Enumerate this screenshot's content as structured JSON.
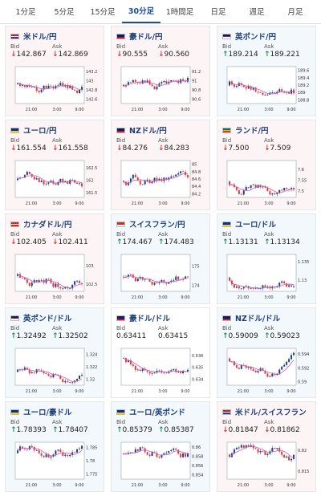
{
  "tabs": [
    "1分足",
    "5分足",
    "15分足",
    "30分足",
    "1時間足",
    "日足",
    "週足",
    "月足"
  ],
  "active_tab": "30分足",
  "labels": {
    "bid": "Bid",
    "ask": "Ask"
  },
  "colors": {
    "up_arrow": "#1f8f5a",
    "down_arrow": "#d23b3b",
    "candle_up": "#1c3f8a",
    "candle_down": "#e03a3a",
    "ma_line": "#c65ec6",
    "title": "#1b3e7a"
  },
  "x_ticks": [
    "21:00",
    "3:00",
    "9:00"
  ],
  "pairs": [
    {
      "name": "米ドル/円",
      "flag": "us",
      "dir": "down",
      "bid": "142.867",
      "ask": "142.869",
      "y_ticks": [
        "143.2",
        "143",
        "142.8",
        "142.6"
      ],
      "ylim": [
        142.5,
        143.3
      ]
    },
    {
      "name": "豪ドル/円",
      "flag": "au",
      "dir": "down",
      "bid": "90.555",
      "ask": "90.560",
      "y_ticks": [
        "91.2",
        "91",
        "90.8",
        "90.6"
      ],
      "ylim": [
        90.5,
        91.3
      ]
    },
    {
      "name": "英ポンド/円",
      "flag": "gb",
      "dir": "up",
      "bid": "189.214",
      "ask": "189.221",
      "y_ticks": [
        "189.6",
        "189.4",
        "189.2",
        "189",
        "188.8"
      ],
      "ylim": [
        188.7,
        189.7
      ]
    },
    {
      "name": "ユーロ/円",
      "flag": "eu",
      "dir": "down",
      "bid": "161.554",
      "ask": "161.558",
      "y_ticks": [
        "162.5",
        "162",
        "161.5"
      ],
      "ylim": [
        161.3,
        162.8
      ]
    },
    {
      "name": "NZドル/円",
      "flag": "nz",
      "dir": "down",
      "bid": "84.276",
      "ask": "84.283",
      "y_ticks": [
        "85",
        "84.8",
        "84.6",
        "84.4",
        "84.2"
      ],
      "ylim": [
        84.1,
        85.1
      ]
    },
    {
      "name": "ランド/円",
      "flag": "za",
      "dir": "down",
      "bid": "7.500",
      "ask": "7.509",
      "y_ticks": [
        "7.6",
        "7.55",
        "7.5"
      ],
      "ylim": [
        7.47,
        7.64
      ]
    },
    {
      "name": "カナダドル/円",
      "flag": "ca",
      "dir": "down",
      "bid": "102.405",
      "ask": "102.411",
      "y_ticks": [
        "103",
        "102.5"
      ],
      "ylim": [
        102.3,
        103.3
      ]
    },
    {
      "name": "スイスフラン/円",
      "flag": "ch",
      "dir": "up",
      "bid": "174.467",
      "ask": "174.483",
      "y_ticks": [
        "175",
        "174"
      ],
      "ylim": [
        173.7,
        175.6
      ]
    },
    {
      "name": "ユーロ/ドル",
      "flag": "eu",
      "dir": "up",
      "bid": "1.13131",
      "ask": "1.13134",
      "y_ticks": [
        "1.135",
        "1.13"
      ],
      "ylim": [
        1.127,
        1.137
      ]
    },
    {
      "name": "英ポンド/ドル",
      "flag": "gb",
      "dir": "up",
      "bid": "1.32492",
      "ask": "1.32502",
      "y_ticks": [
        "1.324",
        "1.322",
        "1.32"
      ],
      "ylim": [
        1.319,
        1.325
      ]
    },
    {
      "name": "豪ドル/ドル",
      "flag": "au",
      "dir": "none",
      "bid": "0.63411",
      "ask": "0.63415",
      "y_ticks": [
        "0.636",
        "0.635",
        "0.634"
      ],
      "ylim": [
        0.6335,
        0.6366
      ]
    },
    {
      "name": "NZドル/ドル",
      "flag": "nz",
      "dir": "up",
      "bid": "0.59009",
      "ask": "0.59023",
      "y_ticks": [
        "0.594",
        "0.592",
        "0.59"
      ],
      "ylim": [
        0.5895,
        0.5948
      ]
    },
    {
      "name": "ユーロ/豪ドル",
      "flag": "eu",
      "dir": "up",
      "bid": "1.78393",
      "ask": "1.78407",
      "y_ticks": [
        "1.785",
        "1.78",
        "1.775"
      ],
      "ylim": [
        1.773,
        1.787
      ]
    },
    {
      "name": "ユーロ/英ポンド",
      "flag": "eu",
      "dir": "up",
      "bid": "0.85379",
      "ask": "0.85387",
      "y_ticks": [
        "0.86",
        "0.858",
        "0.856",
        "0.854"
      ],
      "ylim": [
        0.853,
        0.861
      ]
    },
    {
      "name": "米ドル/スイスフラン",
      "flag": "us",
      "dir": "down",
      "bid": "0.81847",
      "ask": "0.81862",
      "y_ticks": [
        "0.82",
        "0.815"
      ],
      "ylim": [
        0.813,
        0.822
      ]
    }
  ]
}
